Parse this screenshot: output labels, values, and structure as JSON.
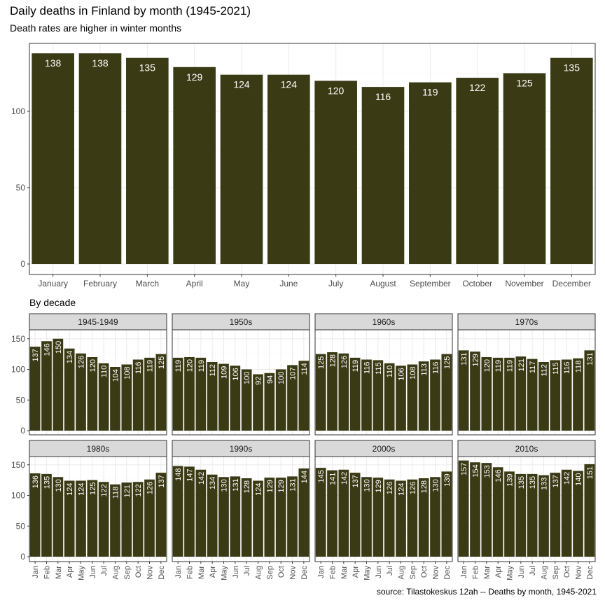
{
  "title": "Daily deaths in Finland by month (1945-2021)",
  "subtitle": "Death rates are higher in winter months",
  "facet_section_label": "By decade",
  "caption": "source: Tilastokeskus 12ah -- Deaths by month, 1945-2021",
  "colors": {
    "bar": "#3a3a15",
    "panel_border": "#333333",
    "grid": "#ebebeb",
    "strip_fill": "#d9d9d9",
    "bar_label": "#ffffff"
  },
  "chart_data": [
    {
      "type": "bar",
      "title": "",
      "categories": [
        "January",
        "February",
        "March",
        "April",
        "May",
        "June",
        "July",
        "August",
        "September",
        "October",
        "November",
        "December"
      ],
      "values": [
        138,
        138,
        135,
        129,
        124,
        124,
        120,
        116,
        119,
        122,
        125,
        135
      ],
      "data_labels": [
        "138",
        "138",
        "135",
        "129",
        "124",
        "124",
        "120",
        "116",
        "119",
        "122",
        "125",
        "135"
      ],
      "yticks": [
        "0",
        "50",
        "100"
      ],
      "ylim": [
        0,
        140
      ],
      "grid": true,
      "legend": "none"
    },
    {
      "type": "bar",
      "facet_title": "By decade",
      "categories": [
        "Jan",
        "Feb",
        "Mar",
        "Apr",
        "May",
        "Jun",
        "Jul",
        "Aug",
        "Sep",
        "Oct",
        "Nov",
        "Dec"
      ],
      "yticks": [
        "0",
        "50",
        "100",
        "150"
      ],
      "ylim": [
        0,
        160
      ],
      "grid": true,
      "panels": [
        {
          "name": "1945-1949",
          "values": [
            137,
            146,
            150,
            134,
            126,
            120,
            110,
            104,
            108,
            116,
            119,
            125
          ]
        },
        {
          "name": "1950s",
          "values": [
            119,
            120,
            119,
            112,
            109,
            106,
            100,
            92,
            94,
            100,
            107,
            114
          ]
        },
        {
          "name": "1960s",
          "values": [
            125,
            128,
            126,
            119,
            116,
            115,
            110,
            106,
            108,
            113,
            116,
            125
          ]
        },
        {
          "name": "1970s",
          "values": [
            131,
            129,
            120,
            119,
            119,
            121,
            117,
            112,
            115,
            116,
            118,
            131
          ]
        },
        {
          "name": "1980s",
          "values": [
            136,
            135,
            130,
            124,
            124,
            125,
            122,
            118,
            121,
            122,
            126,
            137
          ]
        },
        {
          "name": "1990s",
          "values": [
            148,
            147,
            142,
            134,
            130,
            131,
            128,
            124,
            129,
            129,
            131,
            144
          ]
        },
        {
          "name": "2000s",
          "values": [
            145,
            141,
            142,
            137,
            130,
            129,
            126,
            124,
            126,
            128,
            130,
            139
          ]
        },
        {
          "name": "2010s",
          "values": [
            157,
            154,
            153,
            146,
            139,
            135,
            135,
            133,
            137,
            142,
            140,
            151
          ]
        }
      ]
    }
  ]
}
